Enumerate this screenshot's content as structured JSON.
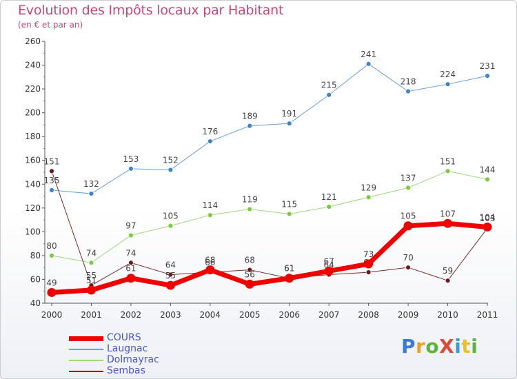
{
  "header": {
    "title": "Evolution des Impôts locaux par Habitant",
    "subtitle": "(en € et par an)"
  },
  "brand": {
    "text": "ProXiti",
    "letter_colors": [
      "#3a7bd5",
      "#e8a22b",
      "#5bb53a",
      "#d94a3a",
      "#3a9ad9",
      "#e8c22b",
      "#5bb53a"
    ]
  },
  "chart_data": {
    "type": "line",
    "title": "Evolution des Impôts locaux par Habitant",
    "subtitle": "(en € et par an)",
    "xlabel": "",
    "ylabel": "",
    "x": [
      "2000",
      "2001",
      "2002",
      "2003",
      "2004",
      "2005",
      "2006",
      "2007",
      "2008",
      "2009",
      "2010",
      "2011"
    ],
    "ylim": [
      40,
      260
    ],
    "yticks": [
      40,
      60,
      80,
      100,
      120,
      140,
      160,
      180,
      200,
      220,
      240,
      260
    ],
    "grid": false,
    "legend_position": "bottom-left",
    "series": [
      {
        "name": "Laugnac",
        "color": "#6b9ed6",
        "marker": "#3d84c6",
        "width": 1,
        "values": [
          135,
          132,
          153,
          152,
          176,
          189,
          191,
          215,
          241,
          218,
          224,
          231
        ],
        "labels": [
          "135",
          "132",
          "153",
          "152",
          "176",
          "189",
          "191",
          "215",
          "241",
          "218",
          "224",
          "231"
        ]
      },
      {
        "name": "Dolmayrac",
        "color": "#9fd67c",
        "marker": "#7ccc3a",
        "width": 1,
        "values": [
          80,
          74,
          97,
          105,
          114,
          119,
          115,
          121,
          129,
          137,
          151,
          144
        ],
        "labels": [
          "80",
          "74",
          "97",
          "105",
          "114",
          "119",
          "115",
          "121",
          "129",
          "137",
          "151",
          "144"
        ]
      },
      {
        "name": "Sembas",
        "color": "#7a2a2a",
        "marker": "#6a1a1a",
        "width": 1,
        "values": [
          151,
          55,
          74,
          64,
          66,
          68,
          61,
          64,
          66,
          70,
          59,
          103
        ],
        "labels": [
          "151",
          "55",
          "74",
          "64",
          "66",
          "68",
          "61",
          "64",
          "66",
          "70",
          "59",
          "103"
        ]
      },
      {
        "name": "COURS",
        "color": "#ee0000",
        "marker": "#ee0000",
        "width": 7,
        "values": [
          49,
          51,
          61,
          55,
          68,
          56,
          61,
          67,
          73,
          105,
          107,
          104
        ],
        "labels": [
          "49",
          "51",
          "61",
          "55",
          "68",
          "56",
          "61",
          "67",
          "73",
          "105",
          "107",
          "104"
        ]
      }
    ],
    "legend": [
      {
        "name": "COURS",
        "color": "#ee0000",
        "width": 7
      },
      {
        "name": "Laugnac",
        "color": "#6b9ed6",
        "width": 2
      },
      {
        "name": "Dolmayrac",
        "color": "#9fd67c",
        "width": 2
      },
      {
        "name": "Sembas",
        "color": "#7a2a2a",
        "width": 2
      }
    ]
  }
}
